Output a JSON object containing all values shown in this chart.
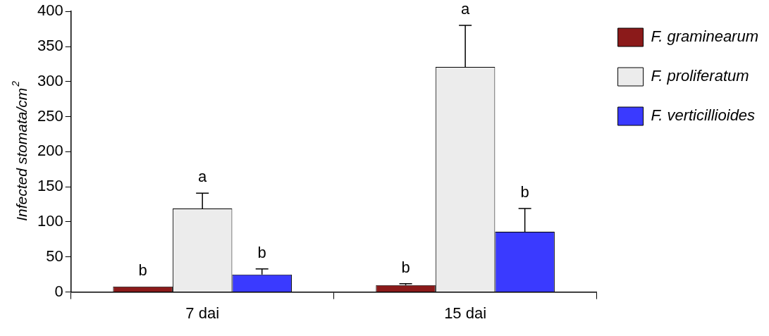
{
  "chart_data": {
    "type": "bar",
    "ylabel": "Infected stomata/cm$^{2}$",
    "categories": [
      "7 dai",
      "15 dai"
    ],
    "series": [
      {
        "name": "F. graminearum",
        "color": "#8b1a1a",
        "values": [
          8,
          10
        ],
        "errors": [
          null,
          2
        ]
      },
      {
        "name": "F. proliferatum",
        "color": "#ececec",
        "values": [
          119,
          321
        ],
        "errors": [
          22,
          59
        ]
      },
      {
        "name": "F. verticillioides",
        "color": "#3a3aff",
        "values": [
          25,
          86
        ],
        "errors": [
          8,
          33
        ]
      }
    ],
    "ylim": [
      0,
      400
    ],
    "yticks": [
      0,
      50,
      100,
      150,
      200,
      250,
      300,
      350,
      400
    ],
    "grid": false,
    "legend": "top right",
    "annotations": [
      "b",
      "a",
      "b",
      "b",
      "a",
      "b"
    ]
  }
}
